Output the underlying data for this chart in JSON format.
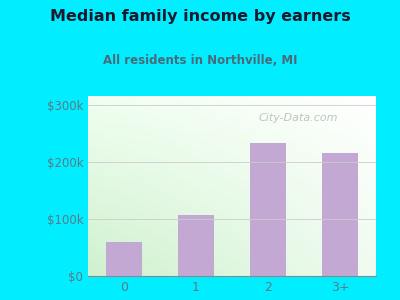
{
  "title": "Median family income by earners",
  "subtitle": "All residents in Northville, MI",
  "categories": [
    "0",
    "1",
    "2",
    "3+"
  ],
  "values": [
    60000,
    107000,
    232000,
    215000
  ],
  "bar_color": "#c4a8d4",
  "yticks": [
    0,
    100000,
    200000,
    300000
  ],
  "ytick_labels": [
    "$0",
    "$100k",
    "$200k",
    "$300k"
  ],
  "ylim": [
    0,
    315000
  ],
  "bg_outer": "#00eeff",
  "title_color": "#1a1a2e",
  "subtitle_color": "#4a6a7a",
  "tick_label_color": "#5a7a8a",
  "watermark": "City-Data.com",
  "grid_color": "#cccccc"
}
